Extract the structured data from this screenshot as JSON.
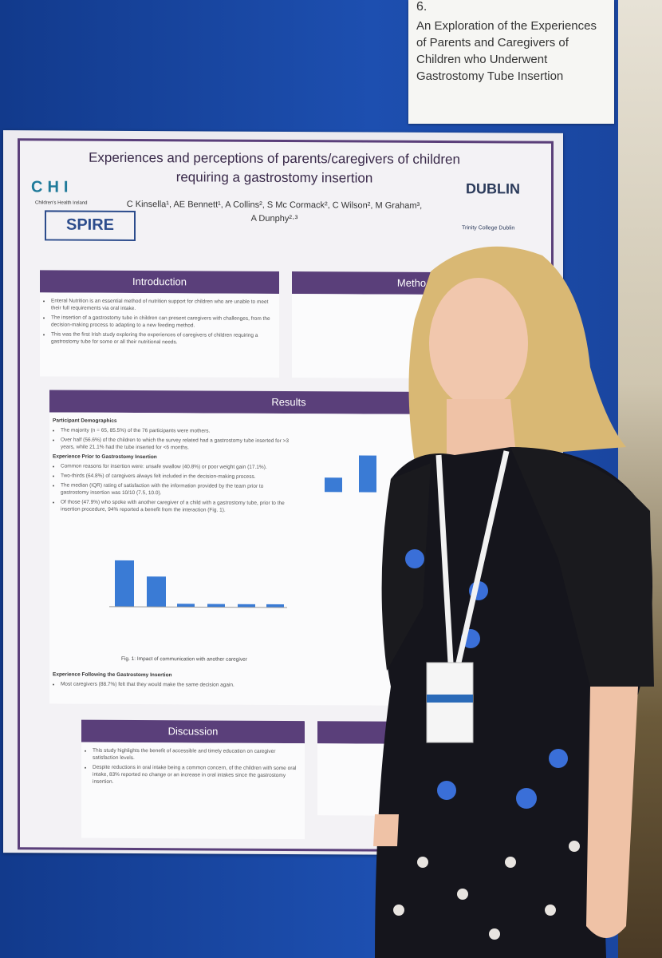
{
  "sign": {
    "number": "6.",
    "text": "An Exploration of the Experiences of Parents and Caregivers of Children who Underwent Gastrostomy Tube Insertion"
  },
  "poster": {
    "title": "Experiences and perceptions of parents/caregivers of children requiring a gastrostomy insertion",
    "authors": "C Kinsella¹, AE Bennett¹, A Collins², S Mc Cormack², C Wilson², M Graham³, A Dunphy²·³",
    "logos": {
      "chi": "CHI",
      "chi_sub": "Children's Health Ireland",
      "spire": "SPIRE",
      "dublin": "DUBLIN",
      "tcd": "Trinity College Dublin"
    },
    "introduction": {
      "heading": "Introduction",
      "bullets": [
        "Enteral Nutrition is an essential method of nutrition support for children who are unable to meet their full requirements via oral intake.",
        "The insertion of a gastrostomy tube in children can present caregivers with challenges, from the decision-making process to adapting to a new feeding method.",
        "This was the first Irish study exploring the experiences of caregivers of children requiring a gastrostomy tube for some or all their nutritional needs."
      ]
    },
    "methods": {
      "heading": "Metho"
    },
    "results": {
      "heading": "Results",
      "bullets": [
        "Participant Demographics",
        "The majority (n = 65, 85.5%) of the 76 participants were mothers.",
        "Over half (56.6%) of the children to which the survey related had a gastrostomy tube inserted for >3 years, while 21.1% had the tube inserted for <6 months.",
        "Experience Prior to Gastrostomy Insertion",
        "Common reasons for insertion were: unsafe swallow (40.8%) or poor weight gain (17.1%).",
        "Two-thirds (64.8%) of caregivers always felt included in the decision-making process.",
        "The median (IQR) rating of satisfaction with the information provided by the team prior to gastrostomy insertion was 10/10 (7.5, 10.0).",
        "Of those (47.9%) who spoke with another caregiver of a child with a gastrostomy tube, prior to the insertion procedure, 94% reported a benefit from the interaction (Fig. 1)."
      ],
      "fig1": "Fig. 1: Impact of communication with another caregiver",
      "bullets2": [
        "Experience Following the Gastrostomy Insertion",
        "Most caregivers (88.7%) felt that they would make the same decision again."
      ]
    },
    "discussion": {
      "heading": "Discussion",
      "bullets": [
        "This study highlights the benefit of accessible and timely education on caregiver satisfaction levels.",
        "Despite reductions in oral intake being a common concern, of the children with some oral intake, 83% reported no change or an increase in oral intakes since the gastrostomy insertion."
      ]
    }
  }
}
